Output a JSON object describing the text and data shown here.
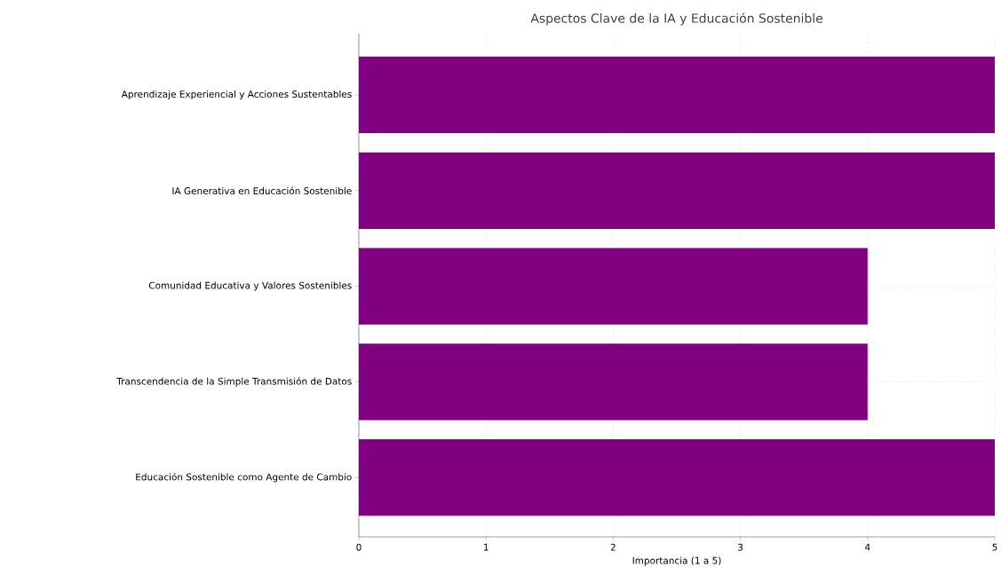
{
  "chart_data": {
    "type": "bar",
    "orientation": "horizontal",
    "title": "Aspectos Clave de la IA y Educación Sostenible",
    "xlabel": "Importancia (1 a 5)",
    "categories": [
      "Aprendizaje Experiencial y Acciones Sustentables",
      "IA Generativa en Educación Sostenible",
      "Comunidad Educativa y Valores Sostenibles",
      "Transcendencia de la Simple Transmisión de Datos",
      "Educación Sostenible como Agente de Cambio"
    ],
    "values": [
      5,
      5,
      4,
      4,
      5
    ],
    "color": "#800080",
    "xlim": [
      0,
      5
    ],
    "xticks": [
      0,
      1,
      2,
      3,
      4,
      5
    ],
    "grid": true
  }
}
